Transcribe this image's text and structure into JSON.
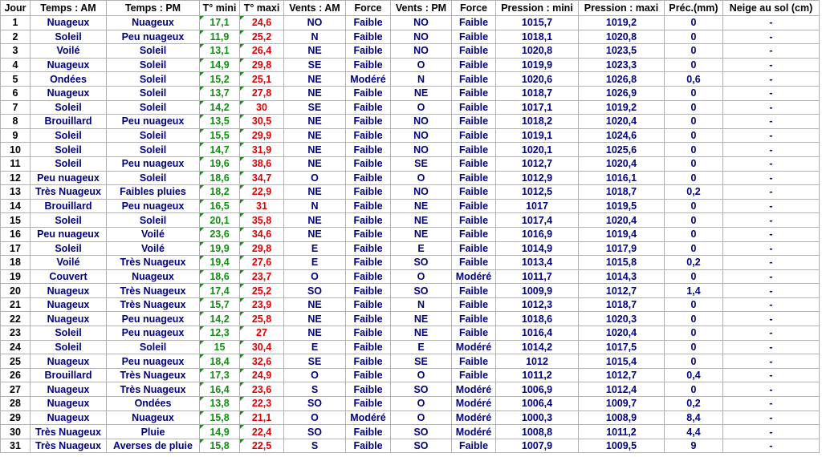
{
  "table": {
    "header": [
      "Jour",
      "Temps : AM",
      "Temps : PM",
      "T° mini",
      "T° maxi",
      "Vents : AM",
      "Force",
      "Vents : PM",
      "Force",
      "Pression : mini",
      "Pression : maxi",
      "Préc.(mm)",
      "Neige au sol (cm)"
    ],
    "rows": [
      [
        "1",
        "Nuageux",
        "Nuageux",
        "17,1",
        "24,6",
        "NO",
        "Faible",
        "NO",
        "Faible",
        "1015,7",
        "1019,2",
        "0",
        "-"
      ],
      [
        "2",
        "Soleil",
        "Peu nuageux",
        "11,9",
        "25,2",
        "N",
        "Faible",
        "NO",
        "Faible",
        "1018,1",
        "1020,8",
        "0",
        "-"
      ],
      [
        "3",
        "Voilé",
        "Soleil",
        "13,1",
        "26,4",
        "NE",
        "Faible",
        "NO",
        "Faible",
        "1020,8",
        "1023,5",
        "0",
        "-"
      ],
      [
        "4",
        "Nuageux",
        "Soleil",
        "14,9",
        "29,8",
        "SE",
        "Faible",
        "O",
        "Faible",
        "1019,9",
        "1023,3",
        "0",
        "-"
      ],
      [
        "5",
        "Ondées",
        "Soleil",
        "15,2",
        "25,1",
        "NE",
        "Modéré",
        "N",
        "Faible",
        "1020,6",
        "1026,8",
        "0,6",
        "-"
      ],
      [
        "6",
        "Nuageux",
        "Soleil",
        "13,7",
        "27,8",
        "NE",
        "Faible",
        "NE",
        "Faible",
        "1018,7",
        "1026,9",
        "0",
        "-"
      ],
      [
        "7",
        "Soleil",
        "Soleil",
        "14,2",
        "30",
        "SE",
        "Faible",
        "O",
        "Faible",
        "1017,1",
        "1019,2",
        "0",
        "-"
      ],
      [
        "8",
        "Brouillard",
        "Peu nuageux",
        "13,5",
        "30,5",
        "NE",
        "Faible",
        "NO",
        "Faible",
        "1018,2",
        "1020,4",
        "0",
        "-"
      ],
      [
        "9",
        "Soleil",
        "Soleil",
        "15,5",
        "29,9",
        "NE",
        "Faible",
        "NO",
        "Faible",
        "1019,1",
        "1024,6",
        "0",
        "-"
      ],
      [
        "10",
        "Soleil",
        "Soleil",
        "14,7",
        "31,9",
        "NE",
        "Faible",
        "NO",
        "Faible",
        "1020,1",
        "1025,6",
        "0",
        "-"
      ],
      [
        "11",
        "Soleil",
        "Peu nuageux",
        "19,6",
        "38,6",
        "NE",
        "Faible",
        "SE",
        "Faible",
        "1012,7",
        "1020,4",
        "0",
        "-"
      ],
      [
        "12",
        "Peu nuageux",
        "Soleil",
        "18,6",
        "34,7",
        "O",
        "Faible",
        "O",
        "Faible",
        "1012,9",
        "1016,1",
        "0",
        "-"
      ],
      [
        "13",
        "Très Nuageux",
        "Faibles pluies",
        "18,2",
        "22,9",
        "NE",
        "Faible",
        "NO",
        "Faible",
        "1012,5",
        "1018,7",
        "0,2",
        "-"
      ],
      [
        "14",
        "Brouillard",
        "Peu nuageux",
        "16,5",
        "31",
        "N",
        "Faible",
        "NE",
        "Faible",
        "1017",
        "1019,5",
        "0",
        "-"
      ],
      [
        "15",
        "Soleil",
        "Soleil",
        "20,1",
        "35,8",
        "NE",
        "Faible",
        "NE",
        "Faible",
        "1017,4",
        "1020,4",
        "0",
        "-"
      ],
      [
        "16",
        "Peu nuageux",
        "Voilé",
        "23,6",
        "34,6",
        "NE",
        "Faible",
        "NE",
        "Faible",
        "1016,9",
        "1019,4",
        "0",
        "-"
      ],
      [
        "17",
        "Soleil",
        "Voilé",
        "19,9",
        "29,8",
        "E",
        "Faible",
        "E",
        "Faible",
        "1014,9",
        "1017,9",
        "0",
        "-"
      ],
      [
        "18",
        "Voilé",
        "Très Nuageux",
        "19,4",
        "27,6",
        "E",
        "Faible",
        "SO",
        "Faible",
        "1013,4",
        "1015,8",
        "0,2",
        "-"
      ],
      [
        "19",
        "Couvert",
        "Nuageux",
        "18,6",
        "23,7",
        "O",
        "Faible",
        "O",
        "Modéré",
        "1011,7",
        "1014,3",
        "0",
        "-"
      ],
      [
        "20",
        "Nuageux",
        "Très Nuageux",
        "17,4",
        "25,2",
        "SO",
        "Faible",
        "SO",
        "Faible",
        "1009,9",
        "1012,7",
        "1,4",
        "-"
      ],
      [
        "21",
        "Nuageux",
        "Très Nuageux",
        "15,7",
        "23,9",
        "NE",
        "Faible",
        "N",
        "Faible",
        "1012,3",
        "1018,7",
        "0",
        "-"
      ],
      [
        "22",
        "Nuageux",
        "Peu nuageux",
        "14,2",
        "25,8",
        "NE",
        "Faible",
        "NE",
        "Faible",
        "1018,6",
        "1020,3",
        "0",
        "-"
      ],
      [
        "23",
        "Soleil",
        "Peu nuageux",
        "12,3",
        "27",
        "NE",
        "Faible",
        "NE",
        "Faible",
        "1016,4",
        "1020,4",
        "0",
        "-"
      ],
      [
        "24",
        "Soleil",
        "Soleil",
        "15",
        "30,4",
        "E",
        "Faible",
        "E",
        "Modéré",
        "1014,2",
        "1017,5",
        "0",
        "-"
      ],
      [
        "25",
        "Nuageux",
        "Peu nuageux",
        "18,4",
        "32,6",
        "SE",
        "Faible",
        "SE",
        "Faible",
        "1012",
        "1015,4",
        "0",
        "-"
      ],
      [
        "26",
        "Brouillard",
        "Très Nuageux",
        "17,3",
        "24,9",
        "O",
        "Faible",
        "O",
        "Faible",
        "1011,2",
        "1012,7",
        "0,4",
        "-"
      ],
      [
        "27",
        "Nuageux",
        "Très Nuageux",
        "16,4",
        "23,6",
        "S",
        "Faible",
        "SO",
        "Modéré",
        "1006,9",
        "1012,4",
        "0",
        "-"
      ],
      [
        "28",
        "Nuageux",
        "Ondées",
        "13,8",
        "22,3",
        "SO",
        "Faible",
        "O",
        "Modéré",
        "1006,4",
        "1009,7",
        "0,2",
        "-"
      ],
      [
        "29",
        "Nuageux",
        "Nuageux",
        "15,8",
        "21,1",
        "O",
        "Modéré",
        "O",
        "Modéré",
        "1000,3",
        "1008,9",
        "8,4",
        "-"
      ],
      [
        "30",
        "Très Nuageux",
        "Pluie",
        "14,9",
        "22,4",
        "SO",
        "Faible",
        "SO",
        "Modéré",
        "1008,8",
        "1011,2",
        "4,4",
        "-"
      ],
      [
        "31",
        "Très Nuageux",
        "Averses de pluie",
        "15,8",
        "22,5",
        "S",
        "Faible",
        "SO",
        "Faible",
        "1007,9",
        "1009,5",
        "9",
        "-"
      ]
    ]
  }
}
